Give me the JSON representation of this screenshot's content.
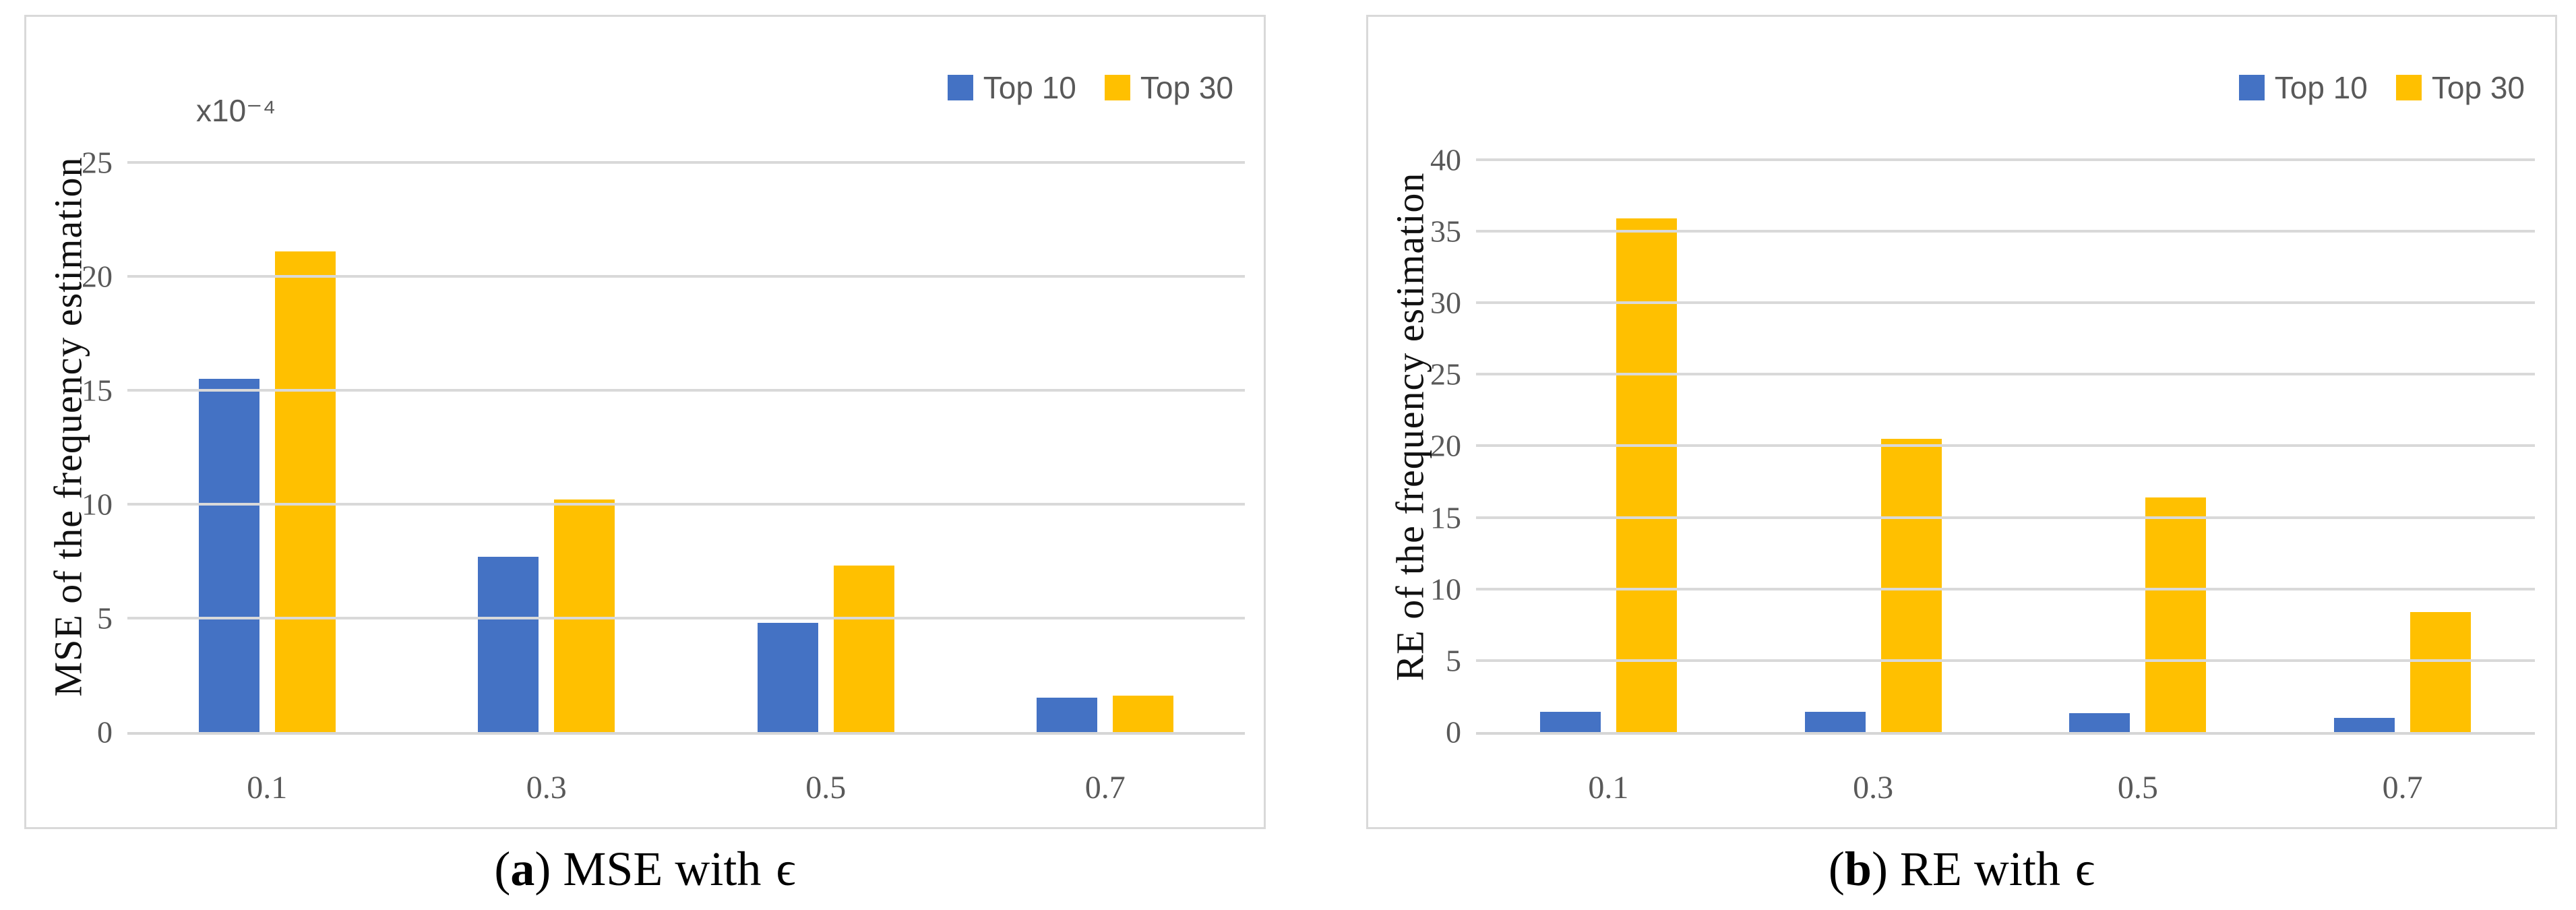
{
  "colors": {
    "top10": "#4472C4",
    "top30": "#FFC000",
    "gridline": "#D9D9D9",
    "tick_text": "#595959",
    "panel_border": "#D9D9D9"
  },
  "panels": [
    {
      "caption": {
        "pre": "(",
        "letter": "a",
        "mid": ") MSE with",
        "eps": "ϵ"
      }
    },
    {
      "caption": {
        "pre": "(",
        "letter": "b",
        "mid": ") RE with",
        "eps": "ϵ"
      }
    }
  ],
  "chart_data": [
    {
      "type": "bar",
      "title": "(a) MSE with ϵ",
      "categories": [
        "0.1",
        "0.3",
        "0.5",
        "0.7"
      ],
      "series": [
        {
          "name": "Top 10",
          "color": "#4472C4",
          "values": [
            15.5,
            7.7,
            4.8,
            1.5
          ]
        },
        {
          "name": "Top 30",
          "color": "#FFC000",
          "values": [
            21.1,
            10.2,
            7.3,
            1.6
          ]
        }
      ],
      "ylabel": "MSE of the frequency estimation",
      "y_scale_label": "x10⁻⁴",
      "yticks": [
        0,
        5,
        10,
        15,
        20,
        25
      ],
      "ylim": [
        0,
        27
      ],
      "xlabel": "",
      "grid": true,
      "legend_position": "top-right"
    },
    {
      "type": "bar",
      "title": "(b) RE with ϵ",
      "categories": [
        "0.1",
        "0.3",
        "0.5",
        "0.7"
      ],
      "series": [
        {
          "name": "Top 10",
          "color": "#4472C4",
          "values": [
            1.4,
            1.4,
            1.3,
            1.0
          ]
        },
        {
          "name": "Top 30",
          "color": "#FFC000",
          "values": [
            35.9,
            20.5,
            16.4,
            8.4
          ]
        }
      ],
      "ylabel": "RE of the frequency estimation",
      "y_scale_label": "",
      "yticks": [
        0,
        5,
        10,
        15,
        20,
        25,
        30,
        35,
        40
      ],
      "ylim": [
        0,
        43
      ],
      "xlabel": "",
      "grid": true,
      "legend_position": "top-right"
    }
  ]
}
